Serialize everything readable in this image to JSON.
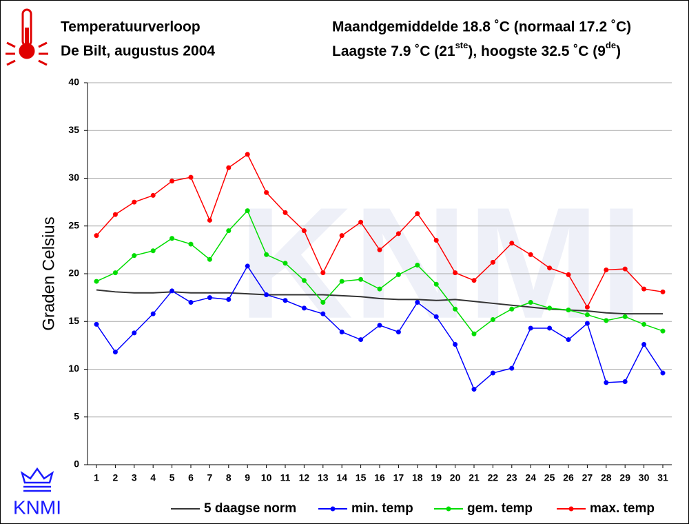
{
  "chart_data": {
    "type": "line",
    "title": "Temperatuurverloop",
    "subtitle": "De Bilt, augustus 2004",
    "stats": "Maandgemiddelde 18.8 ˚C (normaal 17.2 ˚C)",
    "extremes": [
      "Laagste 7.9 ˚C (21",
      "ste",
      "), hoogste 32.5 ˚C (9",
      "de",
      ")"
    ],
    "ylabel": "Graden Celsius",
    "logo": "KNMI",
    "categories": [
      "1",
      "2",
      "3",
      "4",
      "5",
      "6",
      "7",
      "8",
      "9",
      "10",
      "11",
      "12",
      "13",
      "14",
      "15",
      "16",
      "17",
      "18",
      "19",
      "20",
      "21",
      "22",
      "23",
      "24",
      "25",
      "26",
      "27",
      "28",
      "29",
      "30",
      "31"
    ],
    "ylim": [
      0,
      40
    ],
    "yticks": [
      0,
      5,
      10,
      15,
      20,
      25,
      30,
      35,
      40
    ],
    "grid": true,
    "series": [
      {
        "name": "5 daagse norm",
        "color": "#333333",
        "markers": false,
        "values": [
          18.3,
          18.1,
          18.0,
          18.0,
          18.1,
          18.0,
          18.0,
          18.0,
          17.9,
          17.8,
          17.8,
          17.8,
          17.8,
          17.7,
          17.6,
          17.4,
          17.3,
          17.3,
          17.2,
          17.3,
          17.1,
          16.9,
          16.7,
          16.5,
          16.3,
          16.2,
          16.1,
          15.9,
          15.8,
          15.8,
          15.8
        ]
      },
      {
        "name": "min. temp",
        "color": "#0000ff",
        "markers": true,
        "values": [
          14.7,
          11.8,
          13.8,
          15.8,
          18.2,
          17.0,
          17.5,
          17.3,
          20.8,
          17.8,
          17.2,
          16.4,
          15.8,
          13.9,
          13.1,
          14.6,
          13.9,
          17.0,
          15.5,
          12.6,
          7.9,
          9.6,
          10.1,
          14.3,
          14.3,
          13.1,
          14.8,
          8.6,
          8.7,
          12.6,
          9.6
        ]
      },
      {
        "name": "gem. temp",
        "color": "#00dd00",
        "markers": true,
        "values": [
          19.2,
          20.1,
          21.9,
          22.4,
          23.7,
          23.1,
          21.5,
          24.5,
          26.6,
          22.0,
          21.1,
          19.3,
          17.0,
          19.2,
          19.4,
          18.4,
          19.9,
          20.9,
          18.9,
          16.3,
          13.7,
          15.2,
          16.3,
          17.0,
          16.4,
          16.2,
          15.7,
          15.1,
          15.5,
          14.7,
          14.0
        ]
      },
      {
        "name": "max. temp",
        "color": "#ff0000",
        "markers": true,
        "values": [
          24.0,
          26.2,
          27.5,
          28.2,
          29.7,
          30.1,
          25.6,
          31.1,
          32.5,
          28.5,
          26.4,
          24.5,
          20.1,
          24.0,
          25.4,
          22.5,
          24.2,
          26.3,
          23.5,
          20.1,
          19.3,
          21.2,
          23.2,
          22.0,
          20.6,
          19.9,
          16.5,
          20.4,
          20.5,
          18.4,
          18.1
        ]
      }
    ]
  }
}
